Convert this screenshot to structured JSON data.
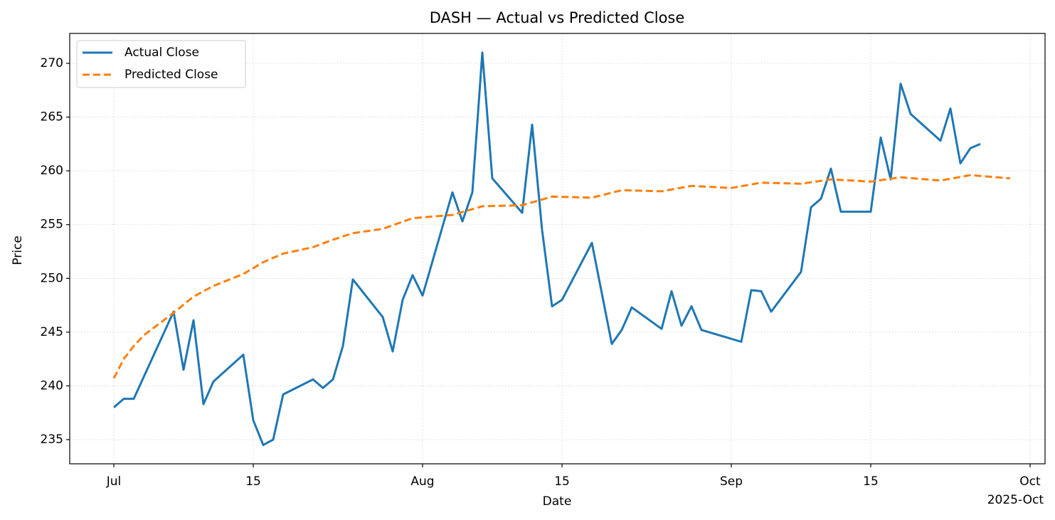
{
  "chart_data": {
    "type": "line",
    "title": "DASH — Actual vs Predicted Close",
    "x_label": "Date",
    "y_label": "Price",
    "x_offset_label": "2025-Oct",
    "xlim": [
      "2025-06-26T13:40Z",
      "2025-10-02T12:00Z"
    ],
    "xticks": [
      {
        "value": "2025-07-01",
        "label": "Jul"
      },
      {
        "value": "2025-07-15",
        "label": "15"
      },
      {
        "value": "2025-08-01",
        "label": "Aug"
      },
      {
        "value": "2025-08-15",
        "label": "15"
      },
      {
        "value": "2025-09-01",
        "label": "Sep"
      },
      {
        "value": "2025-09-15",
        "label": "15"
      },
      {
        "value": "2025-10-01",
        "label": "Oct"
      }
    ],
    "ylim": [
      232.75,
      272.78
    ],
    "yticks": [
      235,
      240,
      245,
      250,
      255,
      260,
      265,
      270
    ],
    "grid": true,
    "legend": "upper left",
    "series": [
      {
        "name": "Actual Close",
        "color": "#1f77b4",
        "style": "solid",
        "x": [
          "2025-07-01",
          "2025-07-02",
          "2025-07-03",
          "2025-07-07",
          "2025-07-08",
          "2025-07-09",
          "2025-07-10",
          "2025-07-11",
          "2025-07-14",
          "2025-07-15",
          "2025-07-16",
          "2025-07-17",
          "2025-07-18",
          "2025-07-21",
          "2025-07-22",
          "2025-07-23",
          "2025-07-24",
          "2025-07-25",
          "2025-07-28",
          "2025-07-29",
          "2025-07-30",
          "2025-07-31",
          "2025-08-01",
          "2025-08-04",
          "2025-08-05",
          "2025-08-06",
          "2025-08-07",
          "2025-08-08",
          "2025-08-11",
          "2025-08-12",
          "2025-08-13",
          "2025-08-14",
          "2025-08-15",
          "2025-08-18",
          "2025-08-19",
          "2025-08-20",
          "2025-08-21",
          "2025-08-22",
          "2025-08-25",
          "2025-08-26",
          "2025-08-27",
          "2025-08-28",
          "2025-08-29",
          "2025-09-02",
          "2025-09-03",
          "2025-09-04",
          "2025-09-05",
          "2025-09-08",
          "2025-09-09",
          "2025-09-10",
          "2025-09-11",
          "2025-09-12",
          "2025-09-15",
          "2025-09-16",
          "2025-09-17",
          "2025-09-18",
          "2025-09-19",
          "2025-09-22",
          "2025-09-23",
          "2025-09-24",
          "2025-09-25",
          "2025-09-26"
        ],
        "values": [
          238.0,
          238.8,
          238.8,
          246.9,
          241.5,
          246.1,
          238.3,
          240.4,
          242.9,
          236.8,
          234.5,
          235.0,
          239.2,
          240.6,
          239.8,
          240.6,
          243.7,
          249.9,
          246.4,
          243.2,
          248.0,
          250.3,
          248.4,
          258.0,
          255.3,
          258.0,
          271.0,
          259.3,
          256.1,
          264.3,
          254.5,
          247.4,
          248.0,
          253.3,
          248.6,
          243.9,
          245.2,
          247.3,
          245.3,
          248.8,
          245.6,
          247.4,
          245.2,
          244.1,
          248.9,
          248.8,
          246.9,
          250.6,
          256.6,
          257.4,
          260.2,
          256.2,
          256.2,
          263.1,
          259.2,
          268.1,
          265.3,
          262.8,
          265.8,
          260.7,
          262.1,
          262.5
        ]
      },
      {
        "name": "Predicted Close",
        "color": "#ff7f0e",
        "style": "dashed",
        "x": [
          "2025-07-01",
          "2025-07-02",
          "2025-07-03",
          "2025-07-04",
          "2025-07-07",
          "2025-07-09",
          "2025-07-11",
          "2025-07-14",
          "2025-07-16",
          "2025-07-18",
          "2025-07-21",
          "2025-07-23",
          "2025-07-25",
          "2025-07-28",
          "2025-07-31",
          "2025-08-04",
          "2025-08-07",
          "2025-08-11",
          "2025-08-14",
          "2025-08-18",
          "2025-08-21",
          "2025-08-25",
          "2025-08-28",
          "2025-09-01",
          "2025-09-04",
          "2025-09-08",
          "2025-09-11",
          "2025-09-15",
          "2025-09-18",
          "2025-09-22",
          "2025-09-25",
          "2025-09-29"
        ],
        "values": [
          240.7,
          242.5,
          243.7,
          244.7,
          246.8,
          248.3,
          249.3,
          250.4,
          251.5,
          252.3,
          252.9,
          253.6,
          254.2,
          254.6,
          255.6,
          255.9,
          256.7,
          256.8,
          257.6,
          257.5,
          258.2,
          258.1,
          258.6,
          258.4,
          258.9,
          258.8,
          259.2,
          259.0,
          259.4,
          259.1,
          259.6,
          259.3
        ]
      }
    ]
  }
}
